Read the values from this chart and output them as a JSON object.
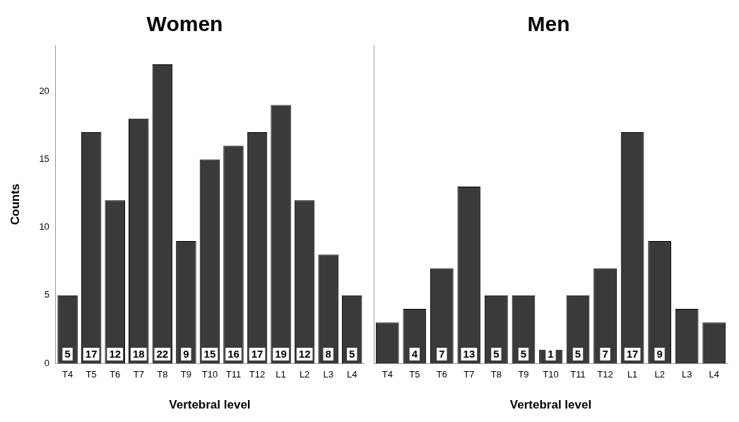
{
  "chart_data": [
    {
      "type": "bar",
      "title": "Women",
      "xlabel": "Vertebral level",
      "ylabel": "Counts",
      "categories": [
        "T4",
        "T5",
        "T6",
        "T7",
        "T8",
        "T9",
        "T10",
        "T11",
        "T12",
        "L1",
        "L2",
        "L3",
        "L4"
      ],
      "values": [
        5,
        17,
        12,
        18,
        22,
        9,
        15,
        16,
        17,
        19,
        12,
        8,
        5
      ],
      "color": "#3a3a3a",
      "ylim": [
        0,
        23.4
      ],
      "yticks": [
        0,
        5,
        10,
        15,
        20
      ],
      "grid": false,
      "legend": false,
      "data_labels": true
    },
    {
      "type": "bar",
      "title": "Men",
      "xlabel": "Vertebral level",
      "categories": [
        "T4",
        "T5",
        "T6",
        "T7",
        "T8",
        "T9",
        "T10",
        "T11",
        "T12",
        "L1",
        "L2",
        "L3",
        "L4"
      ],
      "values": [
        3,
        4,
        7,
        13,
        5,
        5,
        1,
        5,
        7,
        17,
        9,
        4,
        3
      ],
      "color": "#3a3a3a",
      "ylim": [
        0,
        23.4
      ],
      "yticks": [
        0,
        5,
        10,
        15,
        20
      ],
      "grid": false,
      "legend": false,
      "tick_labels": "x",
      "value_labels": [
        null,
        "4",
        "7",
        "13",
        "5",
        "5",
        "1",
        "5",
        "7",
        "17",
        "9",
        null,
        null
      ]
    }
  ]
}
